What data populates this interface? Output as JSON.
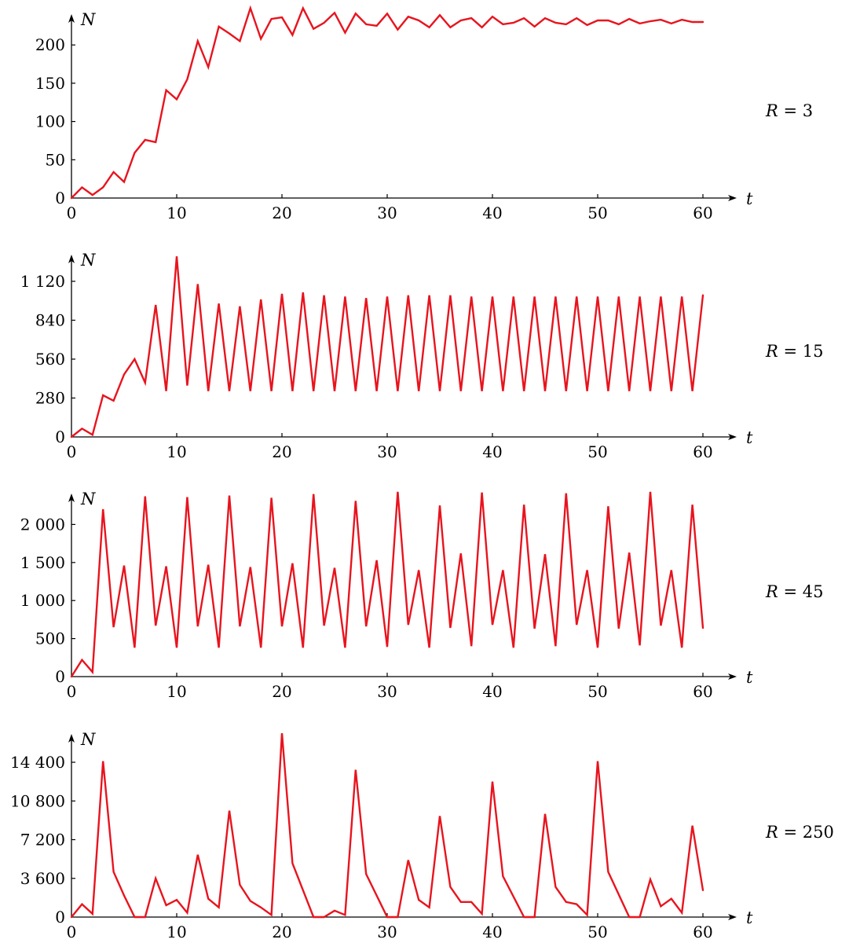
{
  "figure": {
    "line_color": "#e8141e",
    "axis_color": "#000000"
  },
  "chart_data": [
    {
      "type": "line",
      "parameter_label": "R = 3",
      "xlabel": "t",
      "ylabel": "N",
      "xlim": [
        0,
        63
      ],
      "ylim": [
        0,
        245
      ],
      "x_ticks": [
        0,
        10,
        20,
        30,
        40,
        50,
        60
      ],
      "x_tick_labels": [
        "0",
        "10",
        "20",
        "30",
        "40",
        "50",
        "60"
      ],
      "y_ticks": [
        0,
        50,
        100,
        150,
        200
      ],
      "y_tick_labels": [
        "0",
        "50",
        "100",
        "150",
        "200"
      ],
      "grid": false,
      "series": [
        {
          "x": [
            0,
            1,
            2,
            3,
            4,
            5,
            6,
            7,
            8,
            9,
            10,
            11,
            12,
            13,
            14,
            15,
            16,
            17,
            18,
            19,
            20,
            21,
            22,
            23,
            24,
            25,
            26,
            27,
            28,
            29,
            30,
            31,
            32,
            33,
            34,
            35,
            36,
            37,
            38,
            39,
            40,
            41,
            42,
            43,
            44,
            45,
            46,
            47,
            48,
            49,
            50,
            51,
            52,
            53,
            54,
            55,
            56,
            57,
            58,
            59,
            60
          ],
          "y": [
            0,
            14,
            4,
            14,
            34,
            21,
            59,
            76,
            73,
            141,
            129,
            155,
            205,
            171,
            224,
            215,
            205,
            248,
            208,
            234,
            236,
            213,
            248,
            221,
            229,
            242,
            216,
            241,
            227,
            225,
            241,
            220,
            237,
            232,
            223,
            239,
            223,
            232,
            235,
            223,
            237,
            227,
            229,
            235,
            224,
            235,
            229,
            227,
            235,
            226,
            232,
            232,
            227,
            234,
            228,
            231,
            233,
            228,
            233,
            230,
            230
          ]
        }
      ]
    },
    {
      "type": "line",
      "parameter_label": "R = 15",
      "xlabel": "t",
      "ylabel": "N",
      "xlim": [
        0,
        63
      ],
      "ylim": [
        0,
        1310
      ],
      "x_ticks": [
        0,
        10,
        20,
        30,
        40,
        50,
        60
      ],
      "x_tick_labels": [
        "0",
        "10",
        "20",
        "30",
        "40",
        "50",
        "60"
      ],
      "y_ticks": [
        0,
        280,
        560,
        840,
        1120
      ],
      "y_tick_labels": [
        "0",
        "280",
        "560",
        "840",
        "1 120"
      ],
      "grid": false,
      "series": [
        {
          "x": [
            0,
            1,
            2,
            3,
            4,
            5,
            6,
            7,
            8,
            9,
            10,
            11,
            12,
            13,
            14,
            15,
            16,
            17,
            18,
            19,
            20,
            21,
            22,
            23,
            24,
            25,
            26,
            27,
            28,
            29,
            30,
            31,
            32,
            33,
            34,
            35,
            36,
            37,
            38,
            39,
            40,
            41,
            42,
            43,
            44,
            45,
            46,
            47,
            48,
            49,
            50,
            51,
            52,
            53,
            54,
            55,
            56,
            57,
            58,
            59,
            60
          ],
          "y": [
            0,
            60,
            15,
            300,
            260,
            450,
            560,
            390,
            950,
            330,
            1300,
            370,
            1100,
            330,
            960,
            330,
            940,
            330,
            990,
            330,
            1030,
            330,
            1040,
            330,
            1020,
            330,
            1010,
            330,
            1000,
            330,
            1010,
            330,
            1020,
            330,
            1020,
            330,
            1020,
            330,
            1010,
            330,
            1010,
            330,
            1010,
            330,
            1010,
            330,
            1010,
            330,
            1010,
            330,
            1010,
            330,
            1010,
            330,
            1010,
            330,
            1010,
            330,
            1010,
            330,
            1020
          ]
        }
      ]
    },
    {
      "type": "line",
      "parameter_label": "R = 45",
      "xlabel": "t",
      "ylabel": "N",
      "xlim": [
        0,
        63
      ],
      "ylim": [
        0,
        2460
      ],
      "x_ticks": [
        0,
        10,
        20,
        30,
        40,
        50,
        60
      ],
      "x_tick_labels": [
        "0",
        "10",
        "20",
        "30",
        "40",
        "50",
        "60"
      ],
      "y_ticks": [
        0,
        500,
        1000,
        1500,
        2000
      ],
      "y_tick_labels": [
        "0",
        "500",
        "1 000",
        "1 500",
        "2 000"
      ],
      "grid": false,
      "series": [
        {
          "x": [
            0,
            1,
            2,
            3,
            4,
            5,
            6,
            7,
            8,
            9,
            10,
            11,
            12,
            13,
            14,
            15,
            16,
            17,
            18,
            19,
            20,
            21,
            22,
            23,
            24,
            25,
            26,
            27,
            28,
            29,
            30,
            31,
            32,
            33,
            34,
            35,
            36,
            37,
            38,
            39,
            40,
            41,
            42,
            43,
            44,
            45,
            46,
            47,
            48,
            49,
            50,
            51,
            52,
            53,
            54,
            55,
            56,
            57,
            58,
            59,
            60
          ],
          "y": [
            0,
            220,
            60,
            2200,
            650,
            1460,
            380,
            2370,
            670,
            1450,
            380,
            2360,
            660,
            1470,
            380,
            2380,
            660,
            1440,
            380,
            2350,
            660,
            1490,
            380,
            2400,
            670,
            1430,
            380,
            2310,
            660,
            1530,
            390,
            2430,
            680,
            1400,
            380,
            2250,
            640,
            1620,
            400,
            2420,
            680,
            1400,
            380,
            2260,
            630,
            1610,
            400,
            2410,
            680,
            1400,
            380,
            2240,
            630,
            1630,
            410,
            2430,
            670,
            1400,
            380,
            2260,
            640
          ]
        }
      ]
    },
    {
      "type": "line",
      "parameter_label": "R = 250",
      "xlabel": "t",
      "ylabel": "N",
      "xlim": [
        0,
        63
      ],
      "ylim": [
        0,
        17400
      ],
      "x_ticks": [
        0,
        10,
        20,
        30,
        40,
        50,
        60
      ],
      "x_tick_labels": [
        "0",
        "10",
        "20",
        "30",
        "40",
        "50",
        "60"
      ],
      "y_ticks": [
        0,
        3600,
        7200,
        10800,
        14400
      ],
      "y_tick_labels": [
        "0",
        "3 600",
        "7 200",
        "10 800",
        "14 400"
      ],
      "grid": false,
      "series": [
        {
          "x": [
            0,
            1,
            2,
            3,
            4,
            5,
            6,
            7,
            8,
            9,
            10,
            11,
            12,
            13,
            14,
            15,
            16,
            17,
            18,
            19,
            20,
            21,
            22,
            23,
            24,
            25,
            26,
            27,
            28,
            29,
            30,
            31,
            32,
            33,
            34,
            35,
            36,
            37,
            38,
            39,
            40,
            41,
            42,
            43,
            44,
            45,
            46,
            47,
            48,
            49,
            50,
            51,
            52,
            53,
            54,
            55,
            56,
            57,
            58,
            59,
            60
          ],
          "y": [
            0,
            1200,
            300,
            14500,
            4200,
            2000,
            0,
            0,
            3600,
            1100,
            1600,
            400,
            5800,
            1700,
            900,
            9900,
            3000,
            1500,
            900,
            200,
            17100,
            5000,
            2500,
            0,
            0,
            600,
            200,
            13700,
            4000,
            2000,
            0,
            0,
            5300,
            1600,
            900,
            9400,
            2800,
            1400,
            1400,
            300,
            12600,
            3800,
            1900,
            0,
            0,
            9600,
            2800,
            1400,
            1200,
            200,
            14500,
            4200,
            2100,
            0,
            0,
            3500,
            1000,
            1700,
            400,
            8500,
            2500
          ]
        }
      ]
    }
  ]
}
